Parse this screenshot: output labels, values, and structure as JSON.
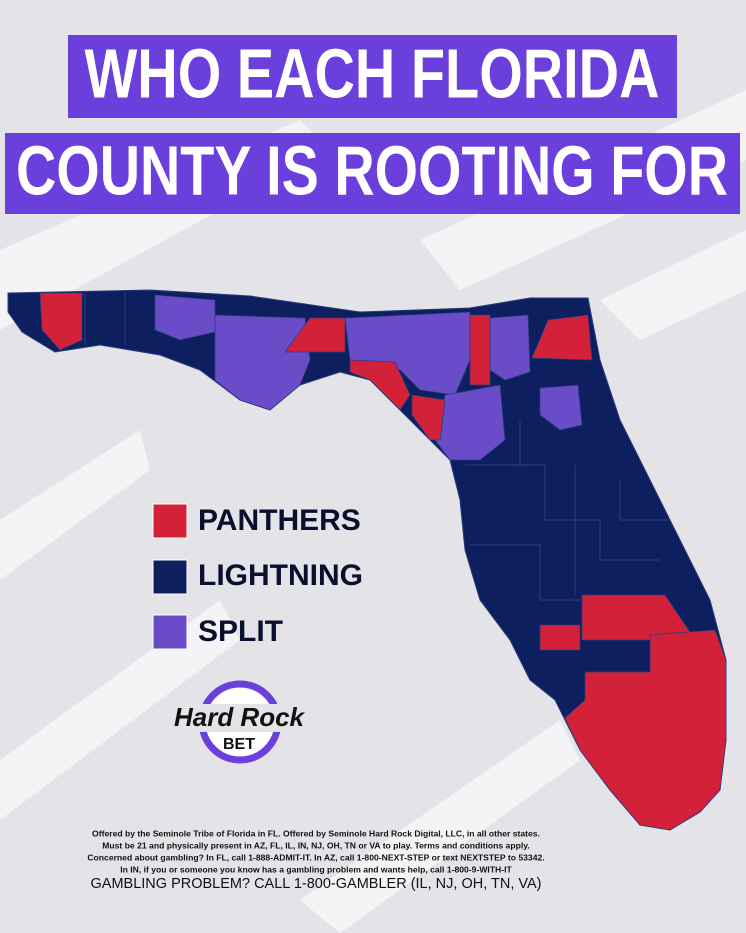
{
  "title": {
    "line1": "WHO EACH FLORIDA",
    "line2": "COUNTY IS ROOTING FOR"
  },
  "legend": [
    {
      "label": "PANTHERS",
      "color": "#d4213a"
    },
    {
      "label": "LIGHTNING",
      "color": "#0d1f5e"
    },
    {
      "label": "SPLIT",
      "color": "#6a4cc9"
    }
  ],
  "logo": {
    "name": "Hard Rock",
    "sub": "BET"
  },
  "disclaimer": [
    "Offered by the Seminole Tribe of Florida in FL. Offered by Seminole Hard Rock Digital, LLC, in all other states.",
    "Must be 21 and physically present in AZ, FL, IL, IN, NJ, OH, TN or VA to play. Terms and conditions apply.",
    "Concerned about gambling? In FL, call 1-888-ADMIT-IT. In AZ, call 1-800-NEXT-STEP or text NEXTSTEP to 53342.",
    "In IN, if you or someone you know has a gambling problem and wants help, call 1-800-9-WITH-IT"
  ],
  "helpline": "GAMBLING PROBLEM? CALL 1-800-GAMBLER (IL, NJ, OH, TN, VA)"
}
